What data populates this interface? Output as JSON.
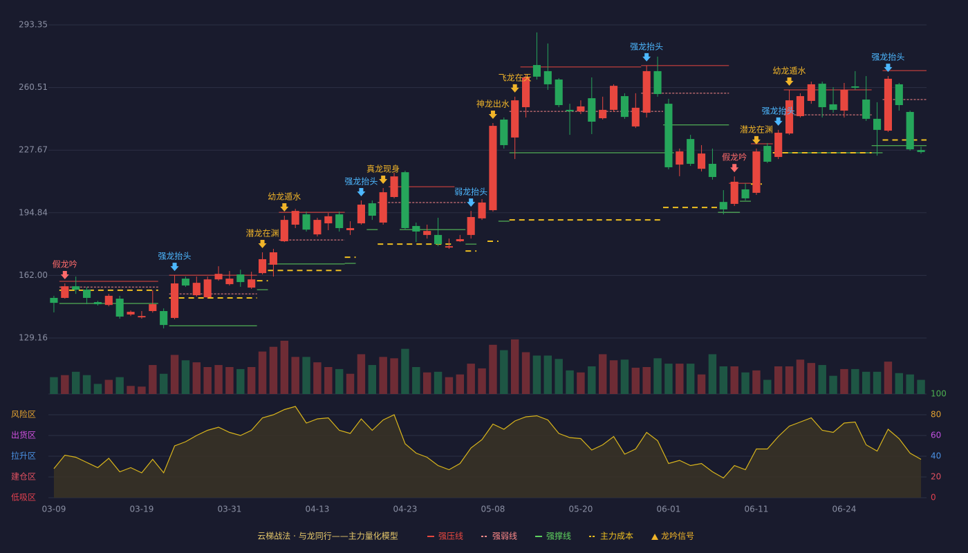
{
  "chart_data": {
    "type": "candlestick",
    "categories": [
      "03-09",
      null,
      null,
      null,
      null,
      null,
      null,
      null,
      "03-19",
      null,
      null,
      null,
      null,
      null,
      null,
      null,
      "03-31",
      null,
      null,
      null,
      null,
      null,
      null,
      null,
      "04-13",
      null,
      null,
      null,
      null,
      null,
      null,
      null,
      "04-23",
      null,
      null,
      null,
      null,
      null,
      null,
      null,
      "05-08",
      null,
      null,
      null,
      null,
      null,
      null,
      null,
      "05-20",
      null,
      null,
      null,
      null,
      null,
      null,
      null,
      "06-01",
      null,
      null,
      null,
      null,
      null,
      null,
      null,
      "06-11",
      null,
      null,
      null,
      null,
      null,
      null,
      null,
      "06-24",
      null,
      null,
      null,
      null,
      null,
      null,
      null
    ],
    "open": [
      150.2,
      150.2,
      156.3,
      154.5,
      148.0,
      146.5,
      149.8,
      141.5,
      140.0,
      143.3,
      143.3,
      139.7,
      160.3,
      151.6,
      150.5,
      159.9,
      157.4,
      162.5,
      155.6,
      163.2,
      167.6,
      179.9,
      188.6,
      194.0,
      183.5,
      189.3,
      194.0,
      185.7,
      189.3,
      199.8,
      189.7,
      203.1,
      216.1,
      187.9,
      183.2,
      183.2,
      176.6,
      179.9,
      183.2,
      191.9,
      196.2,
      243.7,
      234.3,
      250.2,
      272.3,
      269.1,
      264.7,
      248.8,
      248.0,
      254.9,
      244.4,
      248.8,
      256.0,
      240.1,
      247.3,
      269.1,
      252.0,
      220.1,
      233.5,
      217.9,
      220.5,
      200.5,
      199.5,
      207.1,
      205.3,
      229.9,
      224.1,
      236.4,
      245.5,
      253.5,
      262.5,
      251.7,
      248.4,
      261.1,
      254.2,
      244.1,
      237.9,
      262.2,
      247.7,
      227.7
    ],
    "high": [
      151.3,
      157.8,
      161.4,
      156.0,
      148.7,
      152.3,
      151.3,
      143.6,
      143.3,
      154.2,
      144.7,
      162.1,
      161.4,
      161.4,
      161.4,
      166.8,
      164.3,
      165.0,
      163.9,
      174.1,
      175.9,
      193.3,
      196.9,
      195.5,
      192.2,
      194.7,
      195.5,
      190.4,
      201.3,
      201.3,
      207.8,
      215.8,
      216.9,
      189.7,
      188.6,
      192.2,
      181.3,
      183.2,
      195.8,
      202.0,
      241.9,
      244.8,
      255.7,
      267.3,
      289.4,
      283.6,
      265.4,
      252.0,
      253.8,
      265.8,
      255.7,
      262.2,
      257.5,
      257.5,
      272.0,
      276.7,
      254.6,
      228.5,
      235.7,
      230.3,
      228.5,
      206.7,
      213.9,
      210.3,
      228.5,
      231.4,
      238.3,
      259.3,
      257.5,
      263.6,
      263.6,
      260.7,
      262.9,
      269.1,
      266.5,
      252.8,
      266.5,
      262.9,
      248.4,
      229.5
    ],
    "low": [
      142.6,
      149.8,
      152.3,
      146.9,
      146.2,
      145.8,
      139.3,
      140.7,
      139.3,
      142.5,
      134.2,
      139.0,
      156.0,
      150.9,
      149.8,
      159.2,
      156.7,
      156.0,
      154.9,
      162.5,
      161.4,
      179.5,
      186.8,
      185.0,
      182.4,
      185.7,
      185.0,
      183.2,
      188.6,
      191.1,
      188.6,
      202.4,
      186.0,
      179.5,
      181.3,
      177.3,
      175.9,
      179.5,
      181.3,
      191.1,
      195.5,
      228.5,
      223.0,
      244.8,
      264.7,
      259.3,
      250.2,
      235.7,
      246.6,
      236.1,
      243.7,
      247.7,
      244.1,
      239.3,
      244.8,
      255.7,
      217.6,
      214.0,
      219.4,
      216.5,
      212.2,
      194.0,
      198.4,
      201.3,
      204.2,
      220.9,
      223.0,
      235.7,
      244.8,
      252.0,
      244.8,
      247.3,
      244.8,
      259.3,
      243.0,
      224.8,
      237.2,
      248.4,
      227.4,
      225.9
    ],
    "close": [
      147.6,
      156.3,
      154.5,
      150.2,
      146.9,
      151.3,
      140.4,
      142.9,
      140.7,
      146.9,
      136.0,
      157.8,
      156.7,
      158.1,
      159.9,
      162.8,
      160.3,
      158.5,
      159.9,
      170.5,
      174.1,
      191.1,
      195.8,
      186.0,
      191.1,
      193.0,
      186.8,
      186.8,
      199.1,
      193.3,
      205.6,
      213.9,
      186.8,
      185.0,
      185.3,
      178.4,
      177.3,
      181.0,
      192.6,
      200.2,
      240.4,
      230.3,
      253.8,
      265.8,
      266.2,
      262.2,
      251.3,
      248.0,
      250.6,
      242.6,
      248.8,
      261.4,
      245.1,
      249.9,
      269.1,
      257.1,
      218.7,
      227.0,
      220.5,
      225.9,
      213.6,
      196.6,
      211.1,
      202.4,
      227.0,
      221.6,
      236.8,
      253.8,
      256.0,
      262.2,
      250.2,
      248.8,
      259.3,
      260.4,
      244.1,
      238.3,
      265.1,
      251.3,
      228.1,
      226.7
    ],
    "up_color": "#e8473f",
    "down_color": "#26a65b",
    "up_volume_color": "#6e2c35",
    "down_volume_color": "#1e5644",
    "ylim": [
      129.16,
      299.15
    ],
    "yticks": [
      129.16,
      {
        "value": 162,
        "label": "162.00"
      },
      194.84,
      227.67,
      260.51,
      293.35
    ],
    "grid": true,
    "volume": {
      "values": [
        25,
        28,
        33,
        28,
        15,
        21,
        25,
        12,
        11,
        43,
        30,
        58,
        50,
        47,
        40,
        43,
        40,
        37,
        40,
        63,
        70,
        79,
        55,
        55,
        47,
        40,
        37,
        30,
        59,
        43,
        55,
        53,
        67,
        40,
        32,
        33,
        25,
        29,
        45,
        38,
        73,
        65,
        81,
        62,
        57,
        57,
        52,
        35,
        32,
        41,
        59,
        50,
        51,
        39,
        40,
        53,
        45,
        45,
        45,
        29,
        59,
        41,
        41,
        32,
        35,
        21,
        41,
        41,
        51,
        46,
        43,
        27,
        37,
        37,
        33,
        33,
        48,
        31,
        29,
        21
      ],
      "ylim": [
        0,
        82
      ]
    },
    "indicator": {
      "values": [
        28,
        41,
        39,
        34,
        29,
        38,
        25,
        29,
        24,
        37,
        24,
        50,
        54,
        60,
        65,
        68,
        63,
        60,
        65,
        77,
        80,
        85,
        88,
        72,
        76,
        77,
        65,
        62,
        76,
        65,
        75,
        80,
        52,
        43,
        39,
        31,
        27,
        33,
        48,
        56,
        71,
        66,
        74,
        78,
        79,
        75,
        62,
        58,
        57,
        46,
        51,
        59,
        42,
        47,
        63,
        55,
        33,
        36,
        31,
        33,
        25,
        19,
        31,
        27,
        47,
        47,
        59,
        69,
        73,
        77,
        65,
        63,
        72,
        73,
        51,
        45,
        66,
        57,
        43,
        37
      ],
      "color": "#d9b51c",
      "ylim": [
        0,
        100
      ],
      "yticks": [
        0,
        20,
        40,
        60,
        80,
        100
      ],
      "ytick_colors": [
        "#e0404f",
        "#e05060",
        "#4a90e2",
        "#c050e0",
        "#e0a030",
        "#4caf50"
      ],
      "zones": [
        {
          "label": "风险区",
          "value": 80,
          "color": "#e0a030"
        },
        {
          "label": "出货区",
          "value": 60,
          "color": "#d050e0"
        },
        {
          "label": "拉升区",
          "value": 40,
          "color": "#4a90e2"
        },
        {
          "label": "建仓区",
          "value": 20,
          "color": "#e05060"
        },
        {
          "label": "低吸区",
          "value": 0,
          "color": "#e0404f"
        }
      ]
    },
    "levels": [
      {
        "name": "强压线",
        "color": "#e8473f",
        "dash": false,
        "segments": [
          [
            1,
            9,
            158.9
          ],
          [
            11,
            18,
            162.1
          ],
          [
            21,
            26,
            195.1
          ],
          [
            31,
            36,
            208.5
          ],
          [
            43,
            53,
            271.3
          ],
          [
            54,
            61,
            272.0
          ],
          [
            62,
            63,
            210.3
          ],
          [
            64,
            65,
            231.0
          ],
          [
            67,
            74,
            259.3
          ],
          [
            76,
            79,
            269.4
          ]
        ]
      },
      {
        "name": "强弱线",
        "color": "#ff8a8a",
        "dash": true,
        "segments": [
          [
            1,
            9,
            155.9
          ],
          [
            11,
            18,
            152.3
          ],
          [
            21,
            26,
            180.6
          ],
          [
            30,
            37,
            200.2
          ],
          [
            42,
            55,
            248.0
          ],
          [
            54,
            61,
            257.5
          ],
          [
            67,
            74,
            246.2
          ],
          [
            76,
            79,
            254.2
          ]
        ]
      },
      {
        "name": "强撑线",
        "color": "#5fd35f",
        "dash": false,
        "segments": [
          [
            1,
            9,
            147.3
          ],
          [
            11,
            18,
            135.6
          ],
          [
            19,
            19,
            154.5
          ],
          [
            20,
            26,
            168.0
          ],
          [
            27,
            27,
            168.3
          ],
          [
            29,
            29,
            186.0
          ],
          [
            32,
            37,
            186.0
          ],
          [
            38,
            38,
            178.4
          ],
          [
            41,
            41,
            190.4
          ],
          [
            42,
            56,
            226.3
          ],
          [
            56,
            61,
            240.9
          ],
          [
            61,
            62,
            195.1
          ],
          [
            63,
            63,
            200.9
          ],
          [
            66,
            75,
            226.3
          ],
          [
            75,
            79,
            230.0
          ]
        ]
      },
      {
        "name": "主力成本",
        "color": "#f0c020",
        "dash": true,
        "segments": [
          [
            1,
            9,
            154.2
          ],
          [
            11,
            18,
            150.2
          ],
          [
            19,
            19,
            159.2
          ],
          [
            20,
            26,
            164.6
          ],
          [
            27,
            27,
            171.5
          ],
          [
            30,
            36,
            178.4
          ],
          [
            38,
            38,
            174.8
          ],
          [
            40,
            40,
            179.9
          ],
          [
            42,
            55,
            191.1
          ],
          [
            56,
            61,
            197.6
          ],
          [
            64,
            64,
            209.9
          ],
          [
            66,
            74,
            226.3
          ],
          [
            76,
            79,
            233.0
          ]
        ]
      }
    ],
    "signal_legend": {
      "name": "龙吟信号",
      "color": "#f0b429"
    },
    "signals": [
      {
        "label": "假龙吟",
        "index": 1,
        "color": "#ff6b6b"
      },
      {
        "label": "强龙抬头",
        "index": 11,
        "color": "#4db8ff"
      },
      {
        "label": "潜龙在渊",
        "index": 19,
        "color": "#f0b429"
      },
      {
        "label": "幼龙遁水",
        "index": 21,
        "color": "#f0b429"
      },
      {
        "label": "强龙抬头",
        "index": 28,
        "color": "#4db8ff"
      },
      {
        "label": "真龙现身",
        "index": 30,
        "color": "#f0b429"
      },
      {
        "label": "弱龙抬头",
        "index": 38,
        "color": "#4db8ff"
      },
      {
        "label": "神龙出水",
        "index": 40,
        "color": "#f0b429"
      },
      {
        "label": "飞龙在天",
        "index": 42,
        "color": "#f0b429"
      },
      {
        "label": "强龙抬头",
        "index": 54,
        "color": "#4db8ff"
      },
      {
        "label": "假龙吟",
        "index": 62,
        "color": "#ff6b6b"
      },
      {
        "label": "潜龙在渊",
        "index": 64,
        "color": "#f0b429"
      },
      {
        "label": "强龙抬头",
        "index": 66,
        "color": "#4db8ff"
      },
      {
        "label": "幼龙遁水",
        "index": 67,
        "color": "#f0b429"
      },
      {
        "label": "强龙抬头",
        "index": 76,
        "color": "#4db8ff"
      }
    ],
    "legend_title": "云梯战法 · 与龙同行——主力量化模型"
  }
}
